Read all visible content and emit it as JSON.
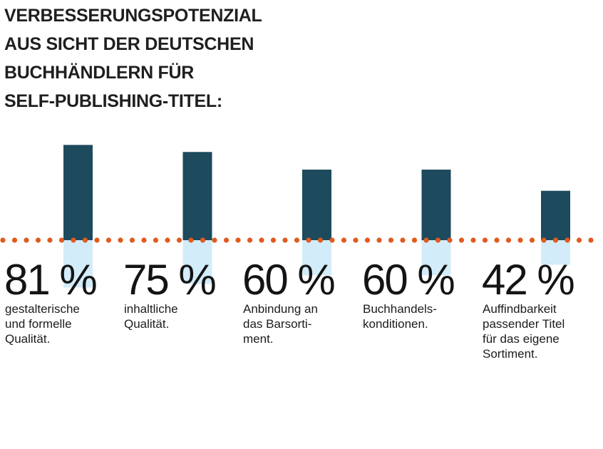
{
  "title_lines": [
    "VERBESSERUNGSPOTENZIAL",
    "AUS SICHT DER DEUTSCHEN",
    "BUCHHÄNDLERN FÜR",
    "SELF-PUBLISHING-TITEL:"
  ],
  "colors": {
    "bar": "#1d4a5c",
    "bar_light": "#d3ecfa",
    "dots": "#e05a1e",
    "text": "#1c1c1c"
  },
  "chart_data": {
    "type": "bar",
    "title": "VERBESSERUNGSPOTENZIAL AUS SICHT DER DEUTSCHEN BUCHHÄNDLERN FÜR SELF-PUBLISHING-TITEL:",
    "categories": [
      "gestalterische und formelle Qualität.",
      "inhaltliche Qualität.",
      "Anbindung an das Barsortiment.",
      "Buchhandelskonditionen.",
      "Auffindbarkeit passender Titel für das eigene Sortiment."
    ],
    "values": [
      81,
      75,
      60,
      60,
      42
    ],
    "unit": "%",
    "ylim": [
      0,
      100
    ],
    "grid": false,
    "legend": "none"
  },
  "items": [
    {
      "value": "81 %",
      "desc": "gestalterische\nund formelle\nQualität."
    },
    {
      "value": "75 %",
      "desc": "inhaltliche\nQualität."
    },
    {
      "value": "60 %",
      "desc": "Anbindung an\ndas Barsorti-\nment."
    },
    {
      "value": "60 %",
      "desc": "Buchhandels-\nkonditionen."
    },
    {
      "value": "42 %",
      "desc": "Auffindbarkeit\npassender Titel\nfür das eigene\nSortiment."
    }
  ]
}
